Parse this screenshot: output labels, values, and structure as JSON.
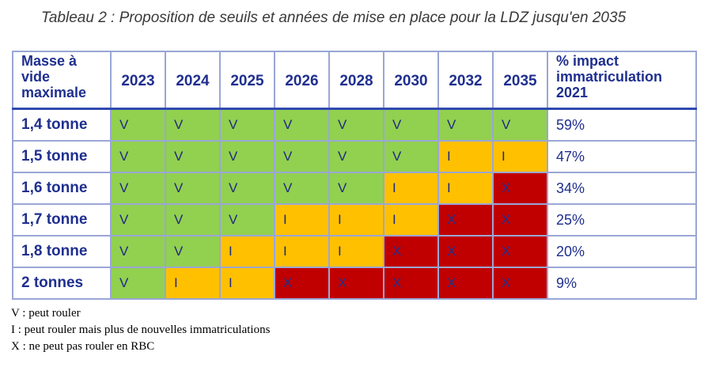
{
  "title": "Tableau 2 : Proposition de seuils et années de mise en place pour la LDZ jusqu'en 2035",
  "table": {
    "corner_label": [
      "Masse à",
      "vide",
      "maximale"
    ],
    "years": [
      "2023",
      "2024",
      "2025",
      "2026",
      "2028",
      "2030",
      "2032",
      "2035"
    ],
    "impact_header": [
      "% impact",
      "immatriculation",
      "2021"
    ],
    "rows": [
      {
        "label": "1,4 tonne",
        "cells": [
          "V",
          "V",
          "V",
          "V",
          "V",
          "V",
          "V",
          "V"
        ],
        "impact": "59%"
      },
      {
        "label": "1,5 tonne",
        "cells": [
          "V",
          "V",
          "V",
          "V",
          "V",
          "V",
          "I",
          "I"
        ],
        "impact": "47%"
      },
      {
        "label": "1,6 tonne",
        "cells": [
          "V",
          "V",
          "V",
          "V",
          "V",
          "I",
          "I",
          "X"
        ],
        "impact": "34%"
      },
      {
        "label": "1,7 tonne",
        "cells": [
          "V",
          "V",
          "V",
          "I",
          "I",
          "I",
          "X",
          "X"
        ],
        "impact": "25%"
      },
      {
        "label": "1,8 tonne",
        "cells": [
          "V",
          "V",
          "I",
          "I",
          "I",
          "X",
          "X",
          "X"
        ],
        "impact": "20%"
      },
      {
        "label": "2 tonnes",
        "cells": [
          "V",
          "I",
          "I",
          "X",
          "X",
          "X",
          "X",
          "X"
        ],
        "impact": "9%"
      }
    ],
    "status_colors": {
      "V": "#92d050",
      "I": "#ffc000",
      "X": "#c00000"
    }
  },
  "legend": [
    "V : peut rouler",
    "I : peut rouler mais plus de nouvelles immatriculations",
    "X : ne peut pas rouler en RBC"
  ]
}
